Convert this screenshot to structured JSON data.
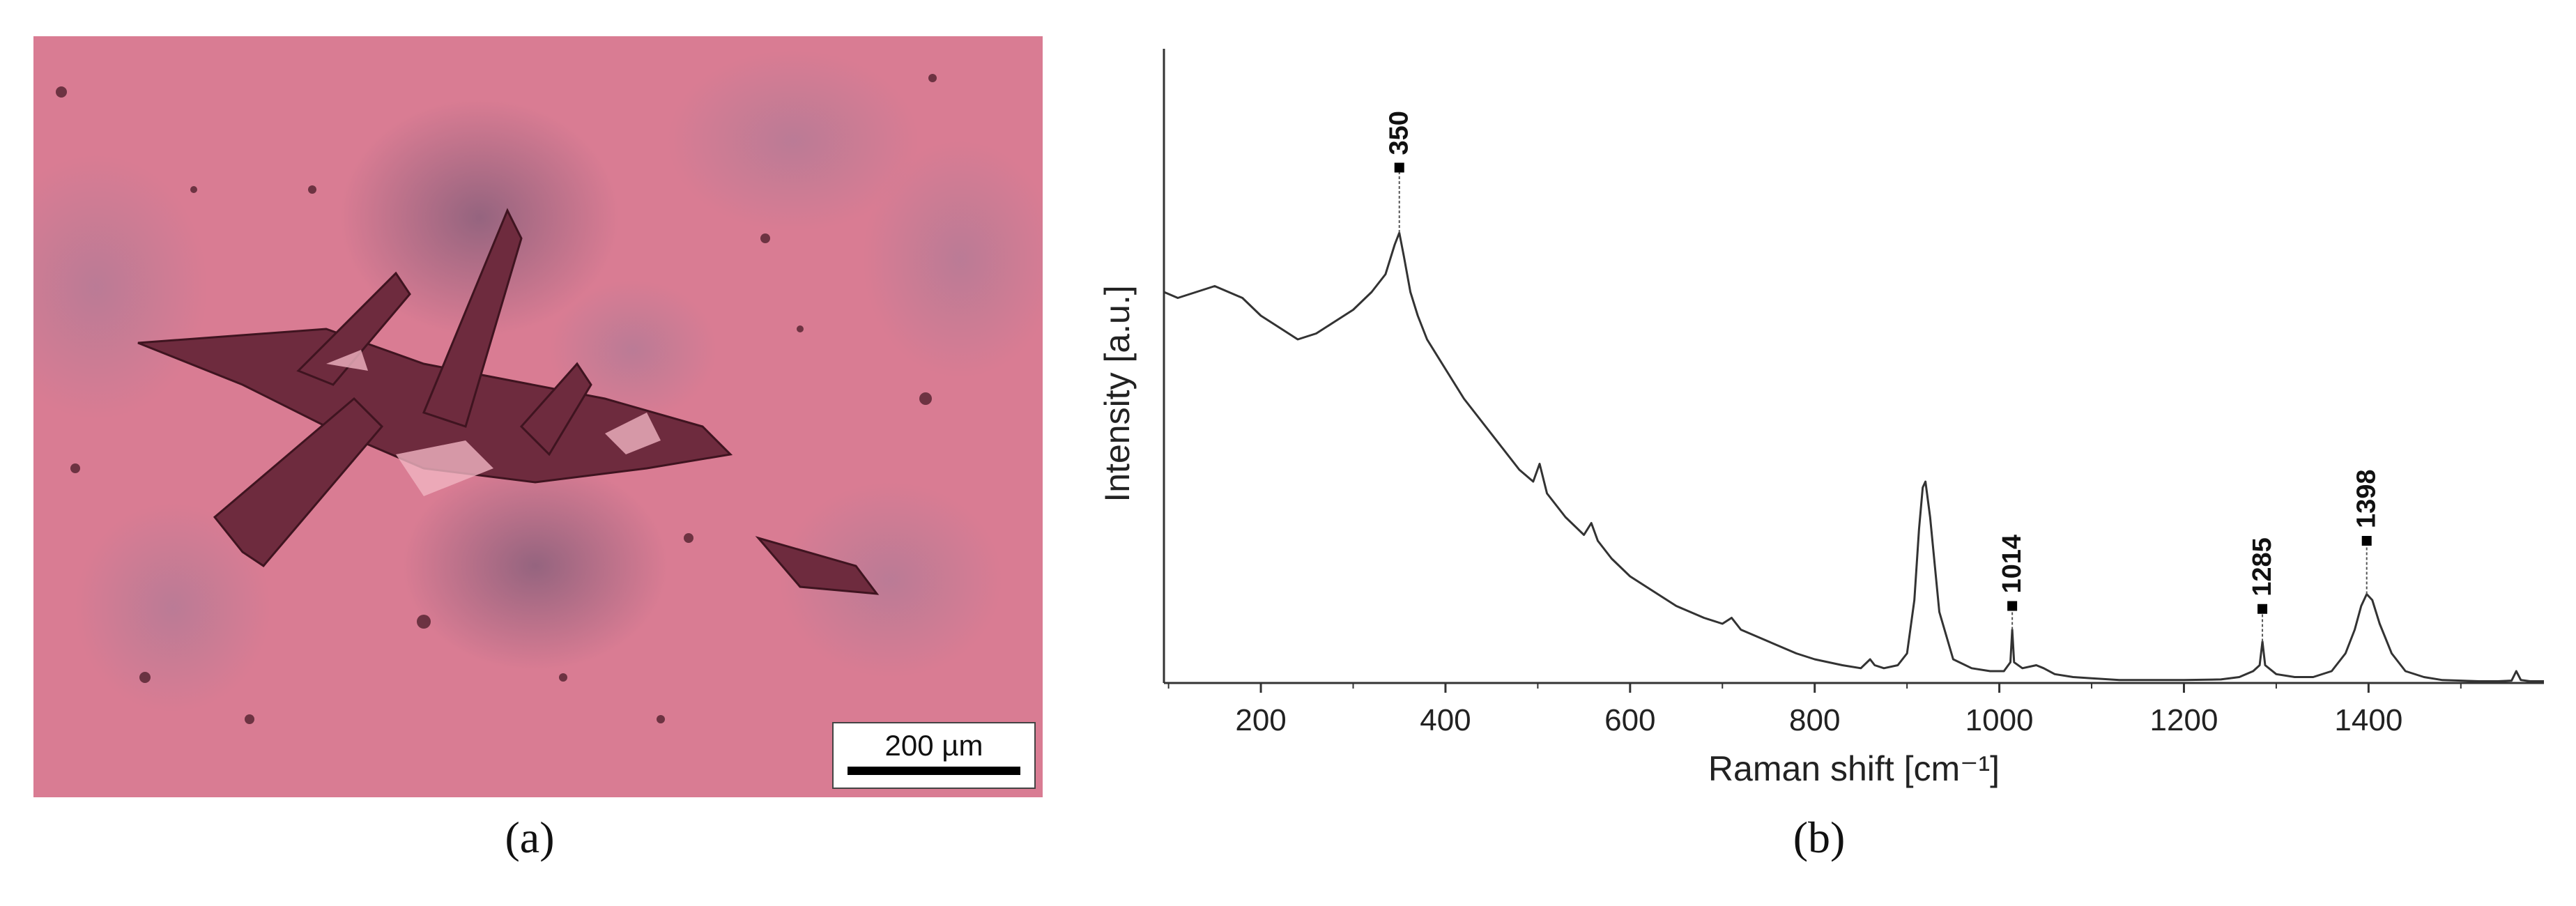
{
  "panel_a": {
    "caption": "(a)",
    "scale_bar_label": "200 µm",
    "image_description_colors": {
      "background": "#d87a92",
      "dark_patch": "#8a5a73",
      "crystal": "#6b2a3a"
    }
  },
  "panel_b": {
    "caption": "(b)"
  },
  "chart_data": {
    "type": "line",
    "title": "",
    "xlabel": "Raman shift [cm⁻¹]",
    "ylabel": "Intensity [a.u.]",
    "xlim": [
      95,
      1590
    ],
    "ylim": [
      0,
      100
    ],
    "x_ticks": [
      200,
      400,
      600,
      800,
      1000,
      1200,
      1400
    ],
    "grid": false,
    "line_color": "#333333",
    "series": [
      {
        "x": [
          95,
          110,
          130,
          150,
          165,
          180,
          200,
          220,
          240,
          260,
          280,
          300,
          320,
          335,
          345,
          350,
          355,
          362,
          370,
          380,
          400,
          420,
          440,
          460,
          480,
          495,
          502,
          510,
          530,
          550,
          558,
          565,
          580,
          600,
          620,
          650,
          680,
          700,
          710,
          720,
          750,
          780,
          800,
          830,
          850,
          860,
          865,
          875,
          890,
          900,
          908,
          913,
          917,
          920,
          925,
          935,
          950,
          970,
          990,
          1005,
          1012,
          1014,
          1016,
          1025,
          1040,
          1048,
          1060,
          1080,
          1100,
          1130,
          1160,
          1200,
          1240,
          1260,
          1275,
          1282,
          1285,
          1288,
          1300,
          1320,
          1340,
          1360,
          1375,
          1385,
          1392,
          1398,
          1404,
          1412,
          1425,
          1440,
          1460,
          1480,
          1500,
          1520,
          1540,
          1555,
          1560,
          1565,
          1575,
          1590
        ],
        "y": [
          66,
          65,
          66,
          67,
          66,
          65,
          62,
          60,
          58,
          59,
          61,
          63,
          66,
          69,
          74,
          76,
          72,
          66,
          62,
          58,
          53,
          48,
          44,
          40,
          36,
          34,
          37,
          32,
          28,
          25,
          27,
          24,
          21,
          18,
          16,
          13,
          11,
          10,
          11,
          9,
          7,
          5,
          4,
          3,
          2.5,
          4,
          3,
          2.5,
          3,
          5,
          14,
          26,
          33,
          34,
          28,
          12,
          4,
          2.5,
          2,
          2,
          3.5,
          9,
          3.5,
          2.5,
          3,
          2.5,
          1.5,
          1,
          0.8,
          0.5,
          0.5,
          0.5,
          0.6,
          1,
          2,
          3,
          7,
          3,
          1.5,
          1,
          1,
          2,
          5,
          9,
          13,
          15,
          14,
          10,
          5,
          2,
          1,
          0.5,
          0.4,
          0.3,
          0.3,
          0.4,
          2,
          0.5,
          0.3,
          0.3
        ]
      }
    ],
    "annotations": [
      {
        "label": "350",
        "x": 350,
        "y": 76,
        "marker_y": 87
      },
      {
        "label": "1014",
        "x": 1014,
        "y": 9,
        "marker_y": 13
      },
      {
        "label": "1285",
        "x": 1285,
        "y": 7,
        "marker_y": 12.5
      },
      {
        "label": "1398",
        "x": 1398,
        "y": 15,
        "marker_y": 24
      }
    ]
  }
}
